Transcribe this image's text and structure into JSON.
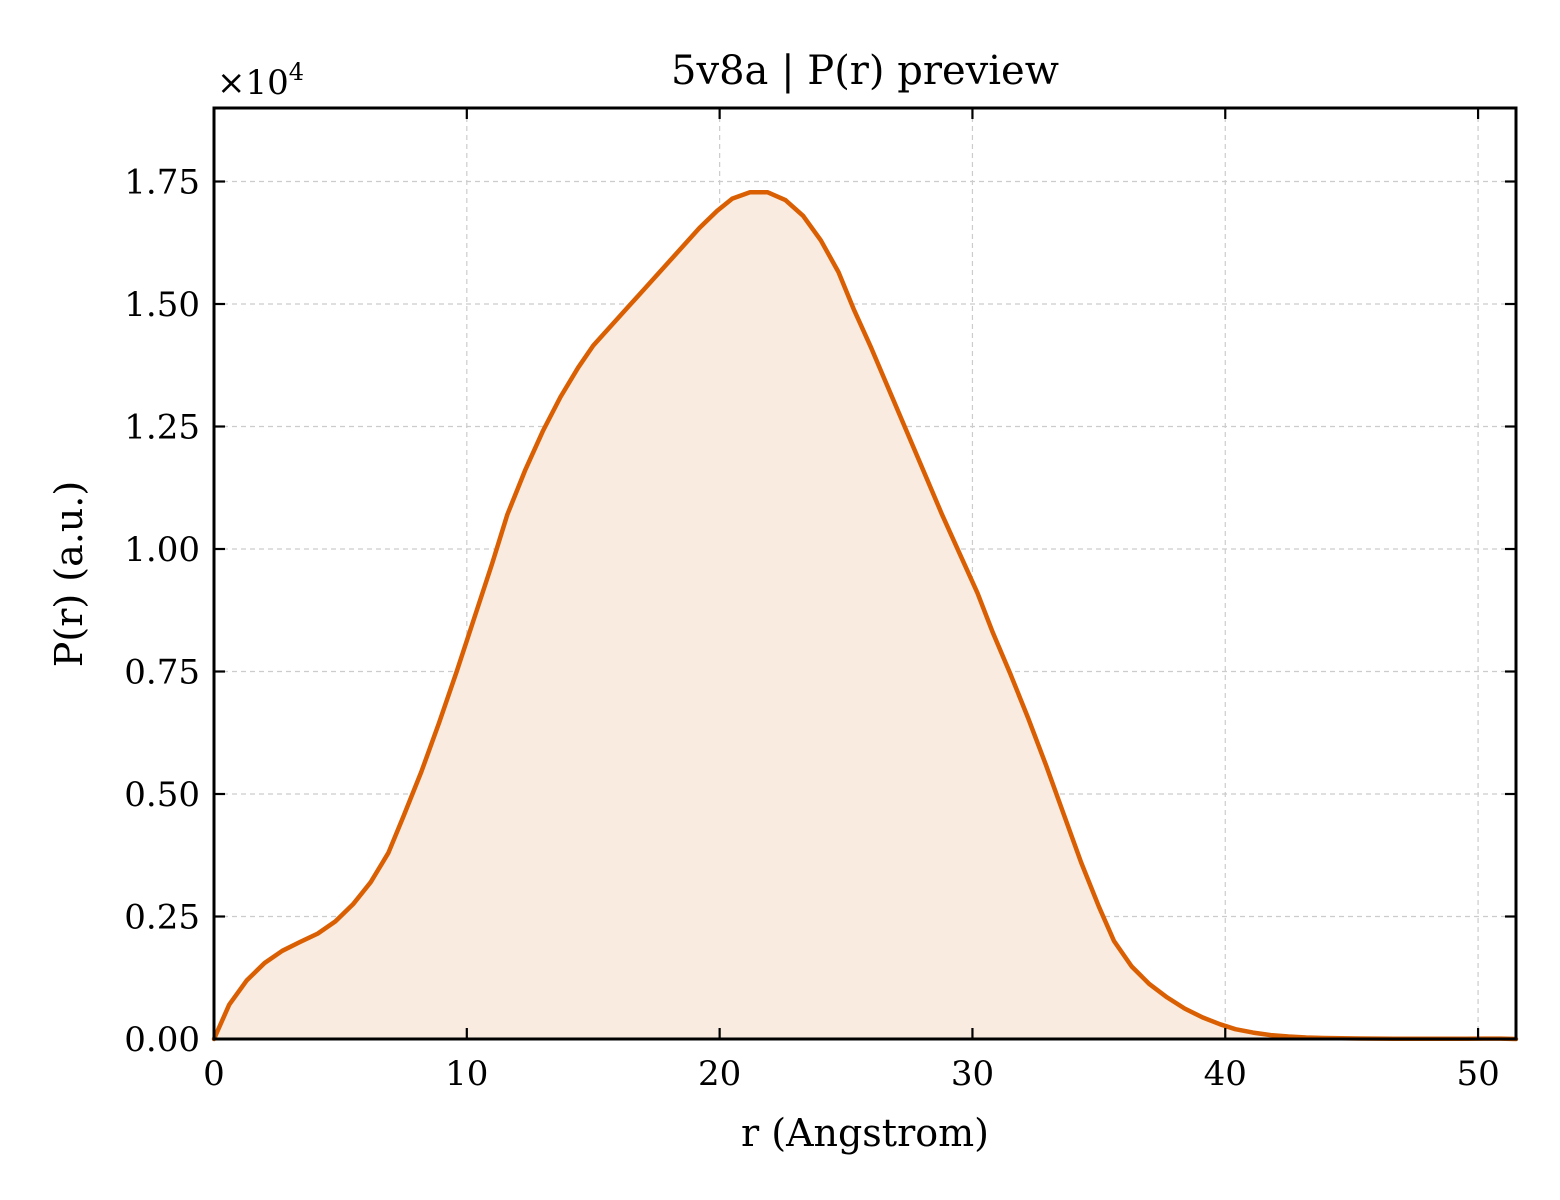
{
  "chart_data": {
    "type": "area",
    "title": "5v8a | P(r) preview",
    "xlabel": "r (Angstrom)",
    "ylabel": "P(r) (a.u.)",
    "y_multiplier_text": "×10",
    "y_multiplier_exp": "4",
    "xlim": [
      0,
      51.5
    ],
    "ylim": [
      0,
      1.9
    ],
    "x_ticks": [
      0,
      10,
      20,
      30,
      40,
      50
    ],
    "x_tick_labels": [
      "0",
      "10",
      "20",
      "30",
      "40",
      "50"
    ],
    "y_ticks": [
      0,
      0.25,
      0.5,
      0.75,
      1.0,
      1.25,
      1.5,
      1.75
    ],
    "y_tick_labels": [
      "0.00",
      "0.25",
      "0.50",
      "0.75",
      "1.00",
      "1.25",
      "1.50",
      "1.75"
    ],
    "grid": true,
    "colors": {
      "line": "#d95f02",
      "fill": "#f9ebe0"
    },
    "series": [
      {
        "x": [
          0,
          0.6,
          1.3,
          2.0,
          2.7,
          3.4,
          4.1,
          4.8,
          5.5,
          6.2,
          6.9,
          7.5,
          8.2,
          8.9,
          9.6,
          10.3,
          11.0,
          11.6,
          12.3,
          13.0,
          13.7,
          14.4,
          15.0,
          15.7,
          16.4,
          17.1,
          17.8,
          18.5,
          19.2,
          19.9,
          20.5,
          21.2,
          21.9,
          22.6,
          23.3,
          24.0,
          24.7,
          25.3,
          26.0,
          26.7,
          27.4,
          28.1,
          28.8,
          29.5,
          30.2,
          30.8,
          31.5,
          32.2,
          32.9,
          33.6,
          34.3,
          35.0,
          35.6,
          36.3,
          37.0,
          37.7,
          38.4,
          39.1,
          39.8,
          40.4,
          41.1,
          41.8,
          42.5,
          43.2,
          43.9,
          44.6,
          45.3,
          46.0,
          46.7,
          47.4,
          48.1,
          48.8,
          49.5,
          50.2,
          50.9,
          51.5
        ],
        "y": [
          0.0,
          0.07,
          0.12,
          0.155,
          0.18,
          0.198,
          0.215,
          0.24,
          0.275,
          0.32,
          0.38,
          0.455,
          0.545,
          0.645,
          0.75,
          0.86,
          0.97,
          1.07,
          1.16,
          1.24,
          1.31,
          1.37,
          1.415,
          1.455,
          1.495,
          1.535,
          1.575,
          1.615,
          1.655,
          1.69,
          1.715,
          1.728,
          1.728,
          1.712,
          1.68,
          1.63,
          1.565,
          1.49,
          1.41,
          1.325,
          1.24,
          1.155,
          1.07,
          0.99,
          0.91,
          0.83,
          0.745,
          0.655,
          0.56,
          0.46,
          0.36,
          0.27,
          0.2,
          0.148,
          0.112,
          0.085,
          0.062,
          0.044,
          0.03,
          0.02,
          0.013,
          0.008,
          0.005,
          0.003,
          0.002,
          0.0015,
          0.001,
          0.0008,
          0.0006,
          0.0005,
          0.0005,
          0.0005,
          0.0005,
          0.0008,
          0.0008,
          0.0
        ]
      }
    ]
  }
}
